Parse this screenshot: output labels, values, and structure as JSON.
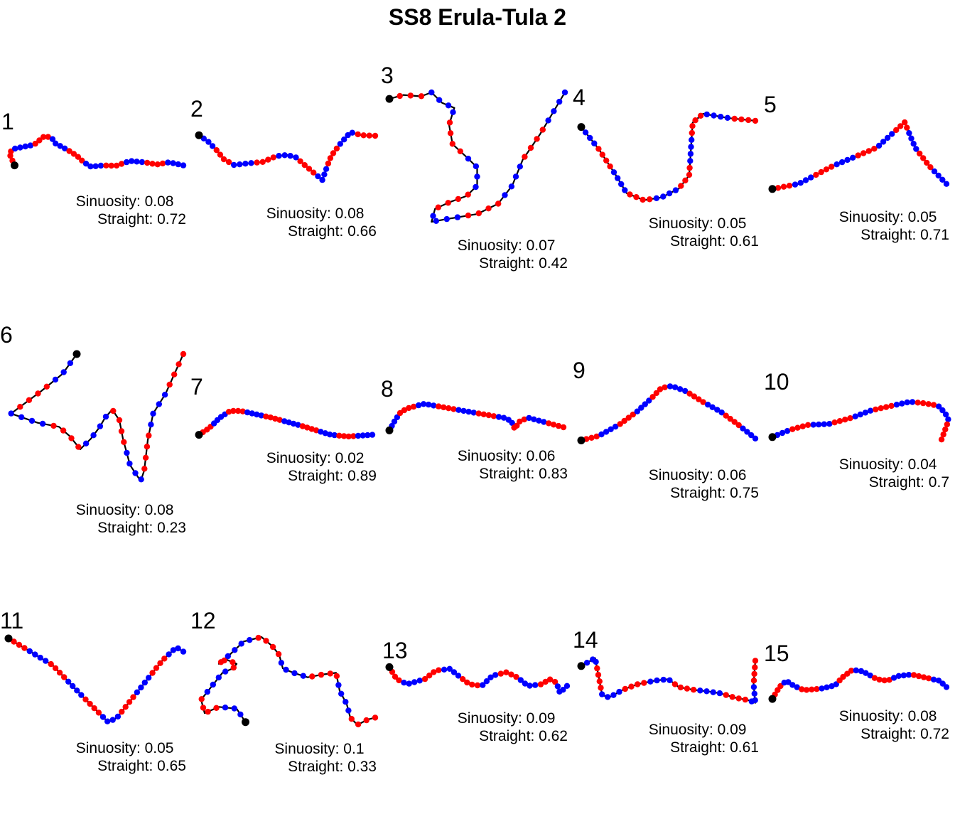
{
  "chart_data": {
    "type": "line",
    "title": "SS8 Erula-Tula 2",
    "colors": {
      "line": "#000000",
      "start": "#000000",
      "state_a": "#ff0000",
      "state_b": "#0000ff"
    },
    "stat_labels": {
      "sinuosity": "Sinuosity:",
      "straightness": "Straight:"
    },
    "panels": [
      {
        "label": "1",
        "sinuosity": "0.08",
        "straightness": "0.72",
        "path": [
          [
            0.05,
            0.72
          ],
          [
            0.02,
            0.45
          ],
          [
            0.04,
            0.35
          ],
          [
            0.1,
            0.3
          ],
          [
            0.16,
            0.25
          ],
          [
            0.22,
            0.05
          ],
          [
            0.26,
            0.1
          ],
          [
            0.28,
            0.22
          ],
          [
            0.34,
            0.35
          ],
          [
            0.4,
            0.5
          ],
          [
            0.44,
            0.65
          ],
          [
            0.48,
            0.75
          ],
          [
            0.55,
            0.72
          ],
          [
            0.62,
            0.73
          ],
          [
            0.7,
            0.62
          ],
          [
            0.78,
            0.65
          ],
          [
            0.85,
            0.7
          ],
          [
            0.92,
            0.65
          ],
          [
            1.0,
            0.72
          ]
        ]
      },
      {
        "label": "2",
        "sinuosity": "0.08",
        "straightness": "0.66",
        "path": [
          [
            0.0,
            0.05
          ],
          [
            0.05,
            0.15
          ],
          [
            0.1,
            0.3
          ],
          [
            0.14,
            0.45
          ],
          [
            0.2,
            0.55
          ],
          [
            0.28,
            0.52
          ],
          [
            0.36,
            0.5
          ],
          [
            0.44,
            0.4
          ],
          [
            0.5,
            0.38
          ],
          [
            0.55,
            0.42
          ],
          [
            0.6,
            0.55
          ],
          [
            0.66,
            0.7
          ],
          [
            0.7,
            0.8
          ],
          [
            0.73,
            0.55
          ],
          [
            0.75,
            0.4
          ],
          [
            0.8,
            0.2
          ],
          [
            0.86,
            0.0
          ],
          [
            0.92,
            0.05
          ],
          [
            1.0,
            0.06
          ]
        ]
      },
      {
        "label": "3",
        "sinuosity": "0.07",
        "straightness": "0.42",
        "path": [
          [
            0.0,
            0.05
          ],
          [
            0.08,
            0.02
          ],
          [
            0.18,
            0.03
          ],
          [
            0.24,
            0.0
          ],
          [
            0.3,
            0.08
          ],
          [
            0.37,
            0.12
          ],
          [
            0.34,
            0.25
          ],
          [
            0.36,
            0.4
          ],
          [
            0.44,
            0.5
          ],
          [
            0.5,
            0.58
          ],
          [
            0.5,
            0.72
          ],
          [
            0.44,
            0.8
          ],
          [
            0.34,
            0.85
          ],
          [
            0.26,
            0.9
          ],
          [
            0.24,
            1.0
          ],
          [
            0.32,
            0.98
          ],
          [
            0.5,
            0.94
          ],
          [
            0.62,
            0.86
          ],
          [
            0.7,
            0.72
          ],
          [
            0.76,
            0.52
          ],
          [
            0.86,
            0.32
          ],
          [
            1.0,
            0.0
          ]
        ]
      },
      {
        "label": "4",
        "sinuosity": "0.05",
        "straightness": "0.61",
        "path": [
          [
            0.0,
            0.15
          ],
          [
            0.1,
            0.4
          ],
          [
            0.2,
            0.7
          ],
          [
            0.26,
            0.9
          ],
          [
            0.36,
            0.98
          ],
          [
            0.46,
            0.95
          ],
          [
            0.56,
            0.85
          ],
          [
            0.62,
            0.7
          ],
          [
            0.63,
            0.4
          ],
          [
            0.64,
            0.1
          ],
          [
            0.7,
            0.0
          ],
          [
            0.85,
            0.05
          ],
          [
            1.0,
            0.08
          ]
        ]
      },
      {
        "label": "5",
        "sinuosity": "0.05",
        "straightness": "0.71",
        "path": [
          [
            0.0,
            0.92
          ],
          [
            0.15,
            0.85
          ],
          [
            0.35,
            0.6
          ],
          [
            0.6,
            0.35
          ],
          [
            0.76,
            0.0
          ],
          [
            0.82,
            0.35
          ],
          [
            0.9,
            0.6
          ],
          [
            1.0,
            0.85
          ]
        ]
      },
      {
        "label": "6",
        "sinuosity": "0.08",
        "straightness": "0.23",
        "path": [
          [
            0.4,
            0.0
          ],
          [
            0.32,
            0.15
          ],
          [
            0.2,
            0.28
          ],
          [
            0.1,
            0.38
          ],
          [
            0.03,
            0.45
          ],
          [
            0.18,
            0.52
          ],
          [
            0.3,
            0.55
          ],
          [
            0.36,
            0.62
          ],
          [
            0.42,
            0.72
          ],
          [
            0.48,
            0.64
          ],
          [
            0.53,
            0.55
          ],
          [
            0.56,
            0.48
          ],
          [
            0.6,
            0.42
          ],
          [
            0.64,
            0.5
          ],
          [
            0.66,
            0.64
          ],
          [
            0.7,
            0.84
          ],
          [
            0.76,
            0.96
          ],
          [
            0.78,
            0.88
          ],
          [
            0.8,
            0.65
          ],
          [
            0.83,
            0.45
          ],
          [
            0.9,
            0.3
          ],
          [
            1.0,
            0.0
          ]
        ]
      },
      {
        "label": "7",
        "sinuosity": "0.02",
        "straightness": "0.89",
        "path": [
          [
            0.0,
            0.95
          ],
          [
            0.06,
            0.75
          ],
          [
            0.12,
            0.45
          ],
          [
            0.18,
            0.25
          ],
          [
            0.24,
            0.25
          ],
          [
            0.42,
            0.45
          ],
          [
            0.6,
            0.7
          ],
          [
            0.76,
            0.95
          ],
          [
            0.86,
            1.0
          ],
          [
            1.0,
            0.95
          ]
        ]
      },
      {
        "label": "8",
        "sinuosity": "0.06",
        "straightness": "0.83",
        "path": [
          [
            0.0,
            0.85
          ],
          [
            0.03,
            0.55
          ],
          [
            0.06,
            0.3
          ],
          [
            0.1,
            0.15
          ],
          [
            0.2,
            0.0
          ],
          [
            0.4,
            0.2
          ],
          [
            0.66,
            0.45
          ],
          [
            0.7,
            0.55
          ],
          [
            0.72,
            0.8
          ],
          [
            0.75,
            0.55
          ],
          [
            0.8,
            0.45
          ],
          [
            1.0,
            0.75
          ]
        ]
      },
      {
        "label": "9",
        "sinuosity": "0.06",
        "straightness": "0.75",
        "path": [
          [
            0.0,
            0.85
          ],
          [
            0.1,
            0.78
          ],
          [
            0.22,
            0.6
          ],
          [
            0.32,
            0.4
          ],
          [
            0.4,
            0.2
          ],
          [
            0.46,
            0.03
          ],
          [
            0.52,
            0.0
          ],
          [
            0.6,
            0.08
          ],
          [
            0.7,
            0.25
          ],
          [
            0.8,
            0.4
          ],
          [
            0.9,
            0.6
          ],
          [
            1.0,
            0.82
          ]
        ]
      },
      {
        "label": "10",
        "sinuosity": "0.04",
        "straightness": "0.7",
        "path": [
          [
            0.0,
            0.85
          ],
          [
            0.1,
            0.7
          ],
          [
            0.2,
            0.6
          ],
          [
            0.32,
            0.58
          ],
          [
            0.45,
            0.45
          ],
          [
            0.56,
            0.3
          ],
          [
            0.68,
            0.2
          ],
          [
            0.78,
            0.12
          ],
          [
            0.86,
            0.15
          ],
          [
            0.94,
            0.2
          ],
          [
            0.98,
            0.35
          ],
          [
            1.0,
            0.5
          ],
          [
            0.96,
            0.9
          ]
        ]
      },
      {
        "label": "11",
        "sinuosity": "0.05",
        "straightness": "0.65",
        "path": [
          [
            0.0,
            0.0
          ],
          [
            0.25,
            0.3
          ],
          [
            0.42,
            0.65
          ],
          [
            0.57,
            0.95
          ],
          [
            0.62,
            0.9
          ],
          [
            0.76,
            0.55
          ],
          [
            0.88,
            0.25
          ],
          [
            0.96,
            0.1
          ],
          [
            1.0,
            0.15
          ]
        ]
      },
      {
        "label": "12",
        "sinuosity": "0.1",
        "straightness": "0.33",
        "path": [
          [
            0.27,
            0.95
          ],
          [
            0.22,
            0.8
          ],
          [
            0.12,
            0.78
          ],
          [
            0.04,
            0.85
          ],
          [
            0.02,
            0.7
          ],
          [
            0.08,
            0.55
          ],
          [
            0.14,
            0.4
          ],
          [
            0.2,
            0.35
          ],
          [
            0.22,
            0.3
          ],
          [
            0.16,
            0.25
          ],
          [
            0.12,
            0.3
          ],
          [
            0.18,
            0.2
          ],
          [
            0.26,
            0.05
          ],
          [
            0.36,
            0.0
          ],
          [
            0.42,
            0.1
          ],
          [
            0.46,
            0.2
          ],
          [
            0.48,
            0.35
          ],
          [
            0.54,
            0.4
          ],
          [
            0.62,
            0.45
          ],
          [
            0.7,
            0.42
          ],
          [
            0.78,
            0.4
          ],
          [
            0.8,
            0.6
          ],
          [
            0.84,
            0.75
          ],
          [
            0.86,
            0.9
          ],
          [
            0.9,
            0.98
          ],
          [
            0.96,
            0.92
          ],
          [
            1.0,
            0.9
          ]
        ]
      },
      {
        "label": "13",
        "sinuosity": "0.09",
        "straightness": "0.62",
        "path": [
          [
            0.0,
            0.05
          ],
          [
            0.04,
            0.4
          ],
          [
            0.1,
            0.55
          ],
          [
            0.2,
            0.4
          ],
          [
            0.26,
            0.15
          ],
          [
            0.34,
            0.1
          ],
          [
            0.4,
            0.35
          ],
          [
            0.45,
            0.55
          ],
          [
            0.52,
            0.6
          ],
          [
            0.58,
            0.3
          ],
          [
            0.66,
            0.2
          ],
          [
            0.72,
            0.35
          ],
          [
            0.78,
            0.6
          ],
          [
            0.86,
            0.55
          ],
          [
            0.9,
            0.4
          ],
          [
            0.94,
            0.5
          ],
          [
            0.96,
            0.8
          ],
          [
            1.0,
            0.6
          ]
        ]
      },
      {
        "label": "14",
        "sinuosity": "0.09",
        "straightness": "0.61",
        "path": [
          [
            0.0,
            0.2
          ],
          [
            0.08,
            0.05
          ],
          [
            0.1,
            0.4
          ],
          [
            0.12,
            0.75
          ],
          [
            0.16,
            0.8
          ],
          [
            0.24,
            0.65
          ],
          [
            0.32,
            0.55
          ],
          [
            0.42,
            0.48
          ],
          [
            0.5,
            0.45
          ],
          [
            0.56,
            0.6
          ],
          [
            0.64,
            0.65
          ],
          [
            0.72,
            0.68
          ],
          [
            0.8,
            0.72
          ],
          [
            0.88,
            0.8
          ],
          [
            0.96,
            0.85
          ],
          [
            1.0,
            0.9
          ],
          [
            0.99,
            0.55
          ],
          [
            1.0,
            0.1
          ]
        ]
      },
      {
        "label": "15",
        "sinuosity": "0.08",
        "straightness": "0.72",
        "path": [
          [
            0.0,
            0.98
          ],
          [
            0.04,
            0.6
          ],
          [
            0.08,
            0.4
          ],
          [
            0.12,
            0.55
          ],
          [
            0.18,
            0.7
          ],
          [
            0.28,
            0.65
          ],
          [
            0.36,
            0.55
          ],
          [
            0.4,
            0.3
          ],
          [
            0.46,
            0.05
          ],
          [
            0.52,
            0.1
          ],
          [
            0.6,
            0.35
          ],
          [
            0.66,
            0.4
          ],
          [
            0.72,
            0.25
          ],
          [
            0.8,
            0.2
          ],
          [
            0.88,
            0.3
          ],
          [
            0.96,
            0.4
          ],
          [
            1.0,
            0.6
          ]
        ]
      }
    ]
  }
}
